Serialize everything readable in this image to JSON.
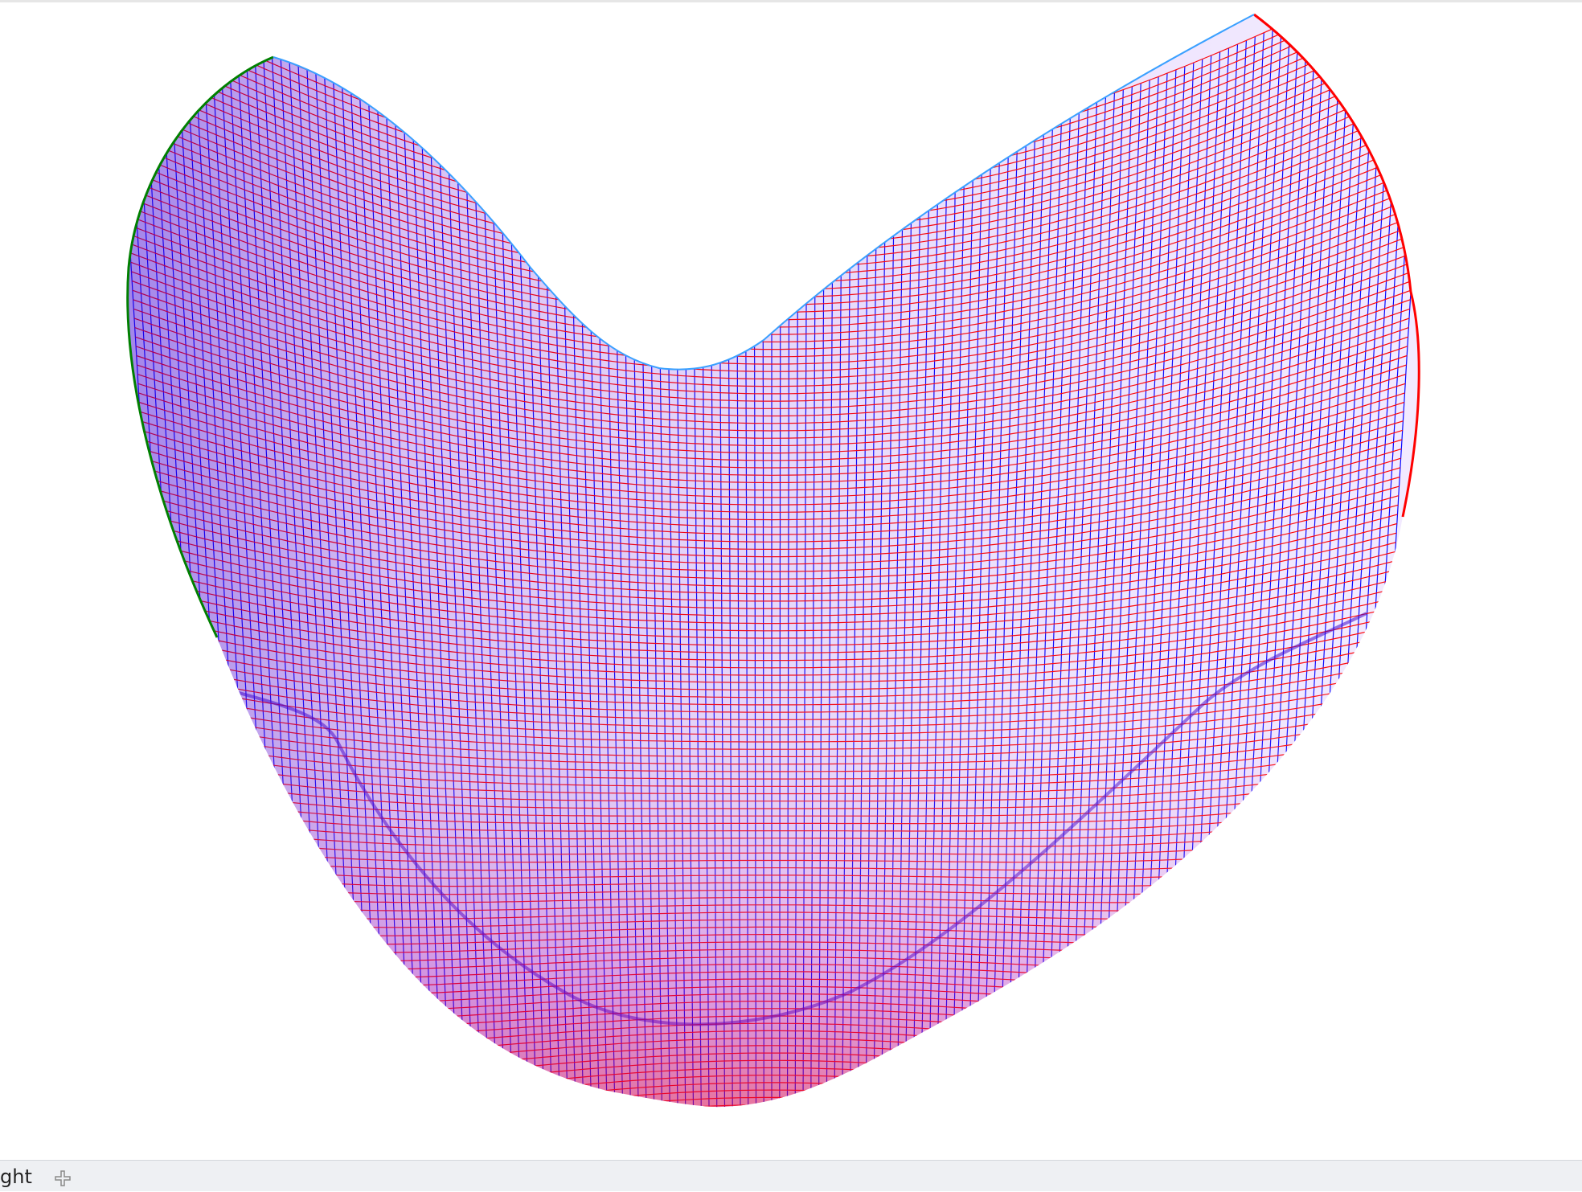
{
  "viewport": {
    "description_icon": "wireframe-mesh",
    "colors": {
      "background": "#ffffff",
      "mesh_primary": "#ff0000",
      "mesh_secondary": "#0000ff",
      "edge_accent": "#008000"
    }
  },
  "bottom_bar": {
    "tab_label": "ght",
    "add_icon": "plus-icon"
  }
}
